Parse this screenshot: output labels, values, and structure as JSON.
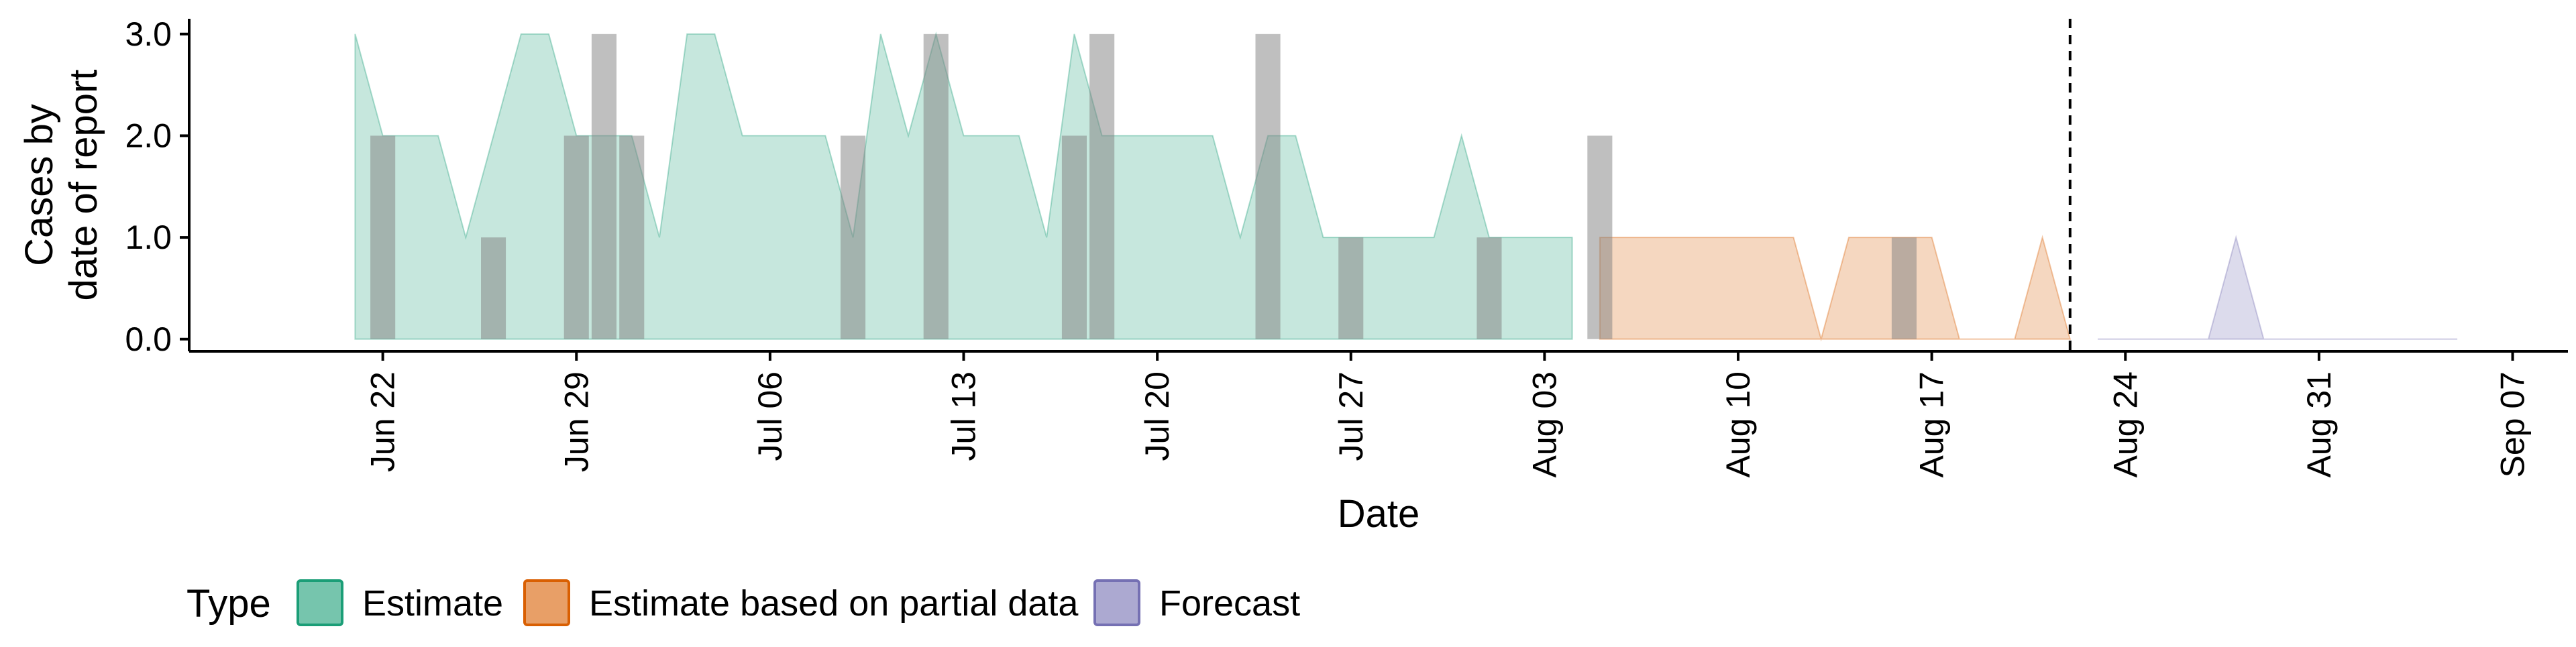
{
  "chart_data": {
    "type": "area",
    "xlabel": "Date",
    "ylabel_lines": [
      "Cases by",
      "date of report"
    ],
    "xlim": [
      "2020-06-15",
      "2020-09-09"
    ],
    "ylim": [
      -0.12,
      3.15
    ],
    "y_ticks": [
      0,
      1,
      2,
      3
    ],
    "y_tick_labels": [
      "0.0",
      "1.0",
      "2.0",
      "3.0"
    ],
    "x_ticks": [
      "2020-06-22",
      "2020-06-29",
      "2020-07-06",
      "2020-07-13",
      "2020-07-20",
      "2020-07-27",
      "2020-08-03",
      "2020-08-10",
      "2020-08-17",
      "2020-08-24",
      "2020-08-31",
      "2020-09-07"
    ],
    "x_tick_labels": [
      "Jun 22",
      "Jun 29",
      "Jul 06",
      "Jul 13",
      "Jul 20",
      "Jul 27",
      "Aug 03",
      "Aug 10",
      "Aug 17",
      "Aug 24",
      "Aug 31",
      "Sep 07"
    ],
    "vline_date": "2020-08-22",
    "vline_style": "dashed",
    "grid": false,
    "legend": {
      "title": "Type",
      "position": "bottom",
      "entries": [
        {
          "label": "Estimate",
          "fill": "#1b9e77",
          "stroke": "#1b9e77"
        },
        {
          "label": "Estimate based on partial data",
          "fill": "#d95f02",
          "stroke": "#d95f02"
        },
        {
          "label": "Forecast",
          "fill": "#7570b3",
          "stroke": "#7570b3"
        }
      ]
    },
    "series": [
      {
        "name": "Estimate",
        "color": "#1b9e77",
        "opacity": 0.25,
        "points": [
          [
            "2020-06-21",
            3
          ],
          [
            "2020-06-22",
            2
          ],
          [
            "2020-06-23",
            2
          ],
          [
            "2020-06-24",
            2
          ],
          [
            "2020-06-25",
            1
          ],
          [
            "2020-06-26",
            2
          ],
          [
            "2020-06-27",
            3
          ],
          [
            "2020-06-28",
            3
          ],
          [
            "2020-06-29",
            2
          ],
          [
            "2020-06-30",
            2
          ],
          [
            "2020-07-01",
            2
          ],
          [
            "2020-07-02",
            1
          ],
          [
            "2020-07-03",
            3
          ],
          [
            "2020-07-04",
            3
          ],
          [
            "2020-07-05",
            2
          ],
          [
            "2020-07-06",
            2
          ],
          [
            "2020-07-07",
            2
          ],
          [
            "2020-07-08",
            2
          ],
          [
            "2020-07-09",
            1
          ],
          [
            "2020-07-10",
            3
          ],
          [
            "2020-07-11",
            2
          ],
          [
            "2020-07-12",
            3
          ],
          [
            "2020-07-13",
            2
          ],
          [
            "2020-07-14",
            2
          ],
          [
            "2020-07-15",
            2
          ],
          [
            "2020-07-16",
            1
          ],
          [
            "2020-07-17",
            3
          ],
          [
            "2020-07-18",
            2
          ],
          [
            "2020-07-19",
            2
          ],
          [
            "2020-07-20",
            2
          ],
          [
            "2020-07-21",
            2
          ],
          [
            "2020-07-22",
            2
          ],
          [
            "2020-07-23",
            1
          ],
          [
            "2020-07-24",
            2
          ],
          [
            "2020-07-25",
            2
          ],
          [
            "2020-07-26",
            1
          ],
          [
            "2020-07-27",
            1
          ],
          [
            "2020-07-28",
            1
          ],
          [
            "2020-07-29",
            1
          ],
          [
            "2020-07-30",
            1
          ],
          [
            "2020-07-31",
            2
          ],
          [
            "2020-08-01",
            1
          ],
          [
            "2020-08-02",
            1
          ],
          [
            "2020-08-03",
            1
          ],
          [
            "2020-08-04",
            1
          ]
        ]
      },
      {
        "name": "Estimate based on partial data",
        "color": "#d95f02",
        "opacity": 0.25,
        "points": [
          [
            "2020-08-05",
            1
          ],
          [
            "2020-08-06",
            1
          ],
          [
            "2020-08-07",
            1
          ],
          [
            "2020-08-08",
            1
          ],
          [
            "2020-08-09",
            1
          ],
          [
            "2020-08-10",
            1
          ],
          [
            "2020-08-11",
            1
          ],
          [
            "2020-08-12",
            1
          ],
          [
            "2020-08-13",
            0
          ],
          [
            "2020-08-14",
            1
          ],
          [
            "2020-08-15",
            1
          ],
          [
            "2020-08-16",
            1
          ],
          [
            "2020-08-17",
            1
          ],
          [
            "2020-08-18",
            0
          ],
          [
            "2020-08-19",
            0
          ],
          [
            "2020-08-20",
            0
          ],
          [
            "2020-08-21",
            1
          ],
          [
            "2020-08-22",
            0
          ]
        ]
      },
      {
        "name": "Forecast",
        "color": "#7570b3",
        "opacity": 0.25,
        "points": [
          [
            "2020-08-23",
            0
          ],
          [
            "2020-08-24",
            0
          ],
          [
            "2020-08-25",
            0
          ],
          [
            "2020-08-26",
            0
          ],
          [
            "2020-08-27",
            0
          ],
          [
            "2020-08-28",
            1
          ],
          [
            "2020-08-29",
            0
          ],
          [
            "2020-08-30",
            0
          ],
          [
            "2020-08-31",
            0
          ],
          [
            "2020-09-01",
            0
          ],
          [
            "2020-09-02",
            0
          ],
          [
            "2020-09-03",
            0
          ],
          [
            "2020-09-04",
            0
          ],
          [
            "2020-09-05",
            0
          ]
        ]
      }
    ],
    "observed_bars": {
      "color": "#808080",
      "opacity": 0.5,
      "points": [
        [
          "2020-06-22",
          2
        ],
        [
          "2020-06-26",
          1
        ],
        [
          "2020-06-29",
          2
        ],
        [
          "2020-06-30",
          3
        ],
        [
          "2020-07-01",
          2
        ],
        [
          "2020-07-09",
          2
        ],
        [
          "2020-07-12",
          3
        ],
        [
          "2020-07-17",
          2
        ],
        [
          "2020-07-18",
          3
        ],
        [
          "2020-07-24",
          3
        ],
        [
          "2020-07-27",
          1
        ],
        [
          "2020-08-01",
          1
        ],
        [
          "2020-08-05",
          2
        ],
        [
          "2020-08-16",
          1
        ]
      ]
    }
  }
}
